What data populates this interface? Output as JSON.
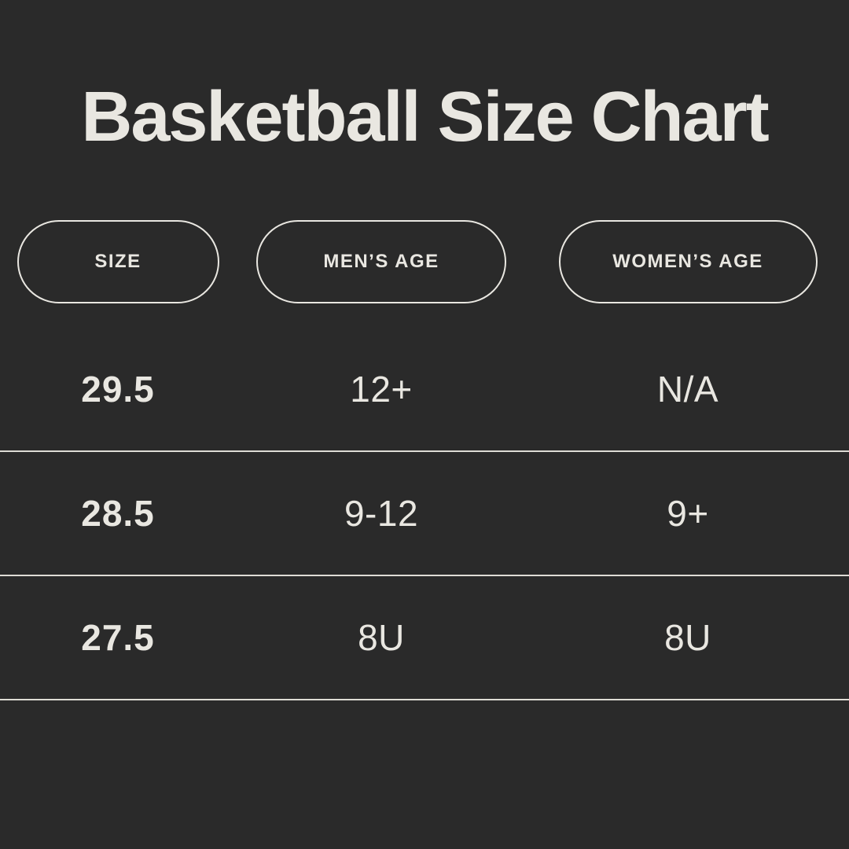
{
  "title": "Basketball Size Chart",
  "colors": {
    "background": "#2A2A2A",
    "text": "#E9E7E1",
    "divider": "#DEDCD5",
    "pill_border": "#E9E7E1"
  },
  "table": {
    "headers": [
      {
        "label": "SIZE"
      },
      {
        "label": "MEN’S AGE"
      },
      {
        "label": "WOMEN’S AGE"
      }
    ],
    "rows": [
      {
        "cells": [
          "29.5",
          "12+",
          "N/A"
        ]
      },
      {
        "cells": [
          "28.5",
          "9-12",
          "9+"
        ]
      },
      {
        "cells": [
          "27.5",
          "8U",
          "8U"
        ]
      }
    ]
  },
  "chart_data": {
    "type": "table",
    "title": "Basketball Size Chart",
    "columns": [
      "SIZE",
      "MEN’S AGE",
      "WOMEN’S AGE"
    ],
    "rows": [
      [
        "29.5",
        "12+",
        "N/A"
      ],
      [
        "28.5",
        "9-12",
        "9+"
      ],
      [
        "27.5",
        "8U",
        "8U"
      ]
    ]
  }
}
